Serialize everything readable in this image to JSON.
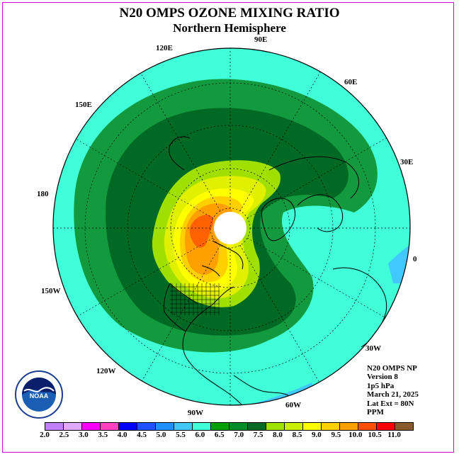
{
  "title": "N20 OMPS OZONE MIXING RATIO",
  "subtitle": "Northern Hemisphere",
  "longitude_labels": [
    "90E",
    "60E",
    "30E",
    "0",
    "30W",
    "60W",
    "90W",
    "120W",
    "150W",
    "180",
    "150E",
    "120E"
  ],
  "info": [
    "N20 OMPS NP",
    "Version 8",
    "1p5 hPa",
    "March 21, 2025",
    "Lat Ext = 80N",
    "PPM"
  ],
  "colorbar": {
    "ticks": [
      "2.0",
      "2.5",
      "3.0",
      "3.5",
      "4.0",
      "4.5",
      "5.0",
      "5.5",
      "6.0",
      "6.5",
      "7.0",
      "7.5",
      "8.0",
      "8.5",
      "9.0",
      "9.5",
      "10.0",
      "10.5",
      "11.0"
    ],
    "colors": [
      "#c080ff",
      "#e0a8ff",
      "#ff00ff",
      "#ff40c0",
      "#0000ff",
      "#2050ff",
      "#1e90ff",
      "#40c8ff",
      "#40ffd8",
      "#00a000",
      "#008c28",
      "#006a24",
      "#a0e000",
      "#c8f000",
      "#ffff00",
      "#ffd000",
      "#ffa000",
      "#ff5000",
      "#ff0000",
      "#8b5a2b"
    ]
  },
  "map_colors": {
    "c55": "#40c8ff",
    "c60": "#40ffd8",
    "c65": "#149a3e",
    "c70": "#006a24",
    "c75": "#a0e000",
    "c80": "#e0f000",
    "c85": "#ffff00",
    "c90": "#ffd000",
    "c95": "#ffa000",
    "c100": "#ff6000",
    "pole": "#ffffff"
  },
  "logo_text": "NOAA"
}
